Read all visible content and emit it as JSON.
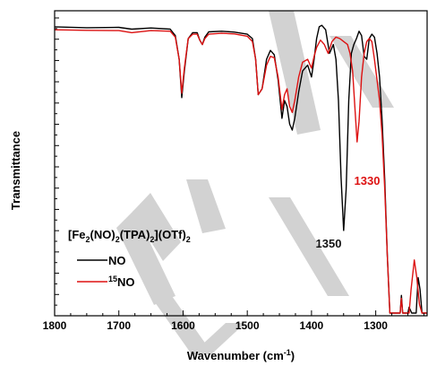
{
  "chart_data": {
    "type": "line",
    "title": "",
    "xlabel_main": "Wavenumber (cm",
    "xlabel_sup": "-1",
    "xlabel_close": ")",
    "ylabel": "Transmittance",
    "xlim": [
      1800,
      1220
    ],
    "xticks": [
      1800,
      1700,
      1600,
      1500,
      1400,
      1300
    ],
    "grid": false,
    "legend": {
      "position": "bottom-left",
      "title_parts": [
        "[Fe",
        "2",
        "(NO)",
        "2",
        "(TPA)",
        "2",
        "](OTf)",
        "2"
      ]
    },
    "series": [
      {
        "name": "NO",
        "label_sup": "",
        "label_main": "NO",
        "color": "#000000",
        "points": [
          [
            1800,
            0.97
          ],
          [
            1750,
            0.967
          ],
          [
            1700,
            0.968
          ],
          [
            1680,
            0.962
          ],
          [
            1650,
            0.966
          ],
          [
            1620,
            0.962
          ],
          [
            1612,
            0.94
          ],
          [
            1606,
            0.86
          ],
          [
            1602,
            0.73
          ],
          [
            1598,
            0.82
          ],
          [
            1592,
            0.93
          ],
          [
            1585,
            0.95
          ],
          [
            1578,
            0.95
          ],
          [
            1574,
            0.925
          ],
          [
            1570,
            0.91
          ],
          [
            1566,
            0.935
          ],
          [
            1560,
            0.953
          ],
          [
            1540,
            0.955
          ],
          [
            1520,
            0.952
          ],
          [
            1500,
            0.945
          ],
          [
            1492,
            0.93
          ],
          [
            1487,
            0.86
          ],
          [
            1483,
            0.74
          ],
          [
            1477,
            0.76
          ],
          [
            1470,
            0.86
          ],
          [
            1464,
            0.89
          ],
          [
            1458,
            0.875
          ],
          [
            1452,
            0.79
          ],
          [
            1446,
            0.66
          ],
          [
            1442,
            0.72
          ],
          [
            1438,
            0.7
          ],
          [
            1434,
            0.64
          ],
          [
            1430,
            0.62
          ],
          [
            1426,
            0.66
          ],
          [
            1420,
            0.75
          ],
          [
            1414,
            0.82
          ],
          [
            1406,
            0.84
          ],
          [
            1400,
            0.8
          ],
          [
            1396,
            0.86
          ],
          [
            1392,
            0.93
          ],
          [
            1388,
            0.97
          ],
          [
            1384,
            0.975
          ],
          [
            1378,
            0.96
          ],
          [
            1372,
            0.88
          ],
          [
            1366,
            0.91
          ],
          [
            1362,
            0.86
          ],
          [
            1358,
            0.72
          ],
          [
            1354,
            0.46
          ],
          [
            1350,
            0.28
          ],
          [
            1346,
            0.42
          ],
          [
            1342,
            0.72
          ],
          [
            1338,
            0.88
          ],
          [
            1334,
            0.91
          ],
          [
            1330,
            0.93
          ],
          [
            1326,
            0.955
          ],
          [
            1322,
            0.94
          ],
          [
            1318,
            0.87
          ],
          [
            1314,
            0.86
          ],
          [
            1310,
            0.93
          ],
          [
            1306,
            0.945
          ],
          [
            1302,
            0.935
          ],
          [
            1298,
            0.88
          ],
          [
            1294,
            0.8
          ],
          [
            1290,
            0.65
          ],
          [
            1286,
            0.45
          ],
          [
            1282,
            0.2
          ],
          [
            1278,
            0
          ],
          [
            1262,
            0
          ],
          [
            1260,
            0.06
          ],
          [
            1258,
            0
          ],
          [
            1250,
            0
          ],
          [
            1248,
            0.02
          ],
          [
            1244,
            0
          ],
          [
            1237,
            0
          ],
          [
            1234,
            0.12
          ],
          [
            1231,
            0.08
          ],
          [
            1228,
            0
          ],
          [
            1220,
            0
          ]
        ]
      },
      {
        "name": "15NO",
        "label_sup": "15",
        "label_main": "NO",
        "color": "#dd1111",
        "points": [
          [
            1800,
            0.96
          ],
          [
            1750,
            0.958
          ],
          [
            1700,
            0.957
          ],
          [
            1680,
            0.95
          ],
          [
            1650,
            0.957
          ],
          [
            1620,
            0.955
          ],
          [
            1612,
            0.935
          ],
          [
            1606,
            0.86
          ],
          [
            1602,
            0.745
          ],
          [
            1598,
            0.83
          ],
          [
            1592,
            0.93
          ],
          [
            1585,
            0.945
          ],
          [
            1578,
            0.945
          ],
          [
            1574,
            0.925
          ],
          [
            1570,
            0.91
          ],
          [
            1566,
            0.93
          ],
          [
            1560,
            0.945
          ],
          [
            1540,
            0.948
          ],
          [
            1520,
            0.946
          ],
          [
            1500,
            0.938
          ],
          [
            1492,
            0.92
          ],
          [
            1487,
            0.86
          ],
          [
            1483,
            0.74
          ],
          [
            1477,
            0.76
          ],
          [
            1470,
            0.84
          ],
          [
            1464,
            0.87
          ],
          [
            1458,
            0.865
          ],
          [
            1452,
            0.8
          ],
          [
            1446,
            0.69
          ],
          [
            1442,
            0.74
          ],
          [
            1438,
            0.76
          ],
          [
            1434,
            0.7
          ],
          [
            1430,
            0.68
          ],
          [
            1426,
            0.72
          ],
          [
            1420,
            0.8
          ],
          [
            1414,
            0.85
          ],
          [
            1406,
            0.86
          ],
          [
            1400,
            0.83
          ],
          [
            1396,
            0.87
          ],
          [
            1392,
            0.9
          ],
          [
            1386,
            0.925
          ],
          [
            1380,
            0.91
          ],
          [
            1374,
            0.88
          ],
          [
            1368,
            0.92
          ],
          [
            1362,
            0.935
          ],
          [
            1356,
            0.93
          ],
          [
            1350,
            0.92
          ],
          [
            1344,
            0.91
          ],
          [
            1340,
            0.88
          ],
          [
            1336,
            0.82
          ],
          [
            1332,
            0.68
          ],
          [
            1329,
            0.58
          ],
          [
            1326,
            0.65
          ],
          [
            1322,
            0.8
          ],
          [
            1318,
            0.88
          ],
          [
            1314,
            0.92
          ],
          [
            1310,
            0.93
          ],
          [
            1306,
            0.92
          ],
          [
            1302,
            0.86
          ],
          [
            1298,
            0.79
          ],
          [
            1294,
            0.72
          ],
          [
            1290,
            0.6
          ],
          [
            1286,
            0.42
          ],
          [
            1282,
            0.2
          ],
          [
            1278,
            0
          ],
          [
            1262,
            0
          ],
          [
            1260,
            0.05
          ],
          [
            1258,
            0
          ],
          [
            1248,
            0
          ],
          [
            1245,
            0.08
          ],
          [
            1240,
            0.18
          ],
          [
            1236,
            0.12
          ],
          [
            1232,
            0.03
          ],
          [
            1228,
            0
          ],
          [
            1220,
            0
          ]
        ]
      }
    ],
    "annotations": [
      {
        "text": "1350",
        "x": 1350,
        "color": "#111111"
      },
      {
        "text": "1330",
        "x": 1330,
        "color": "#dd1111"
      }
    ]
  }
}
